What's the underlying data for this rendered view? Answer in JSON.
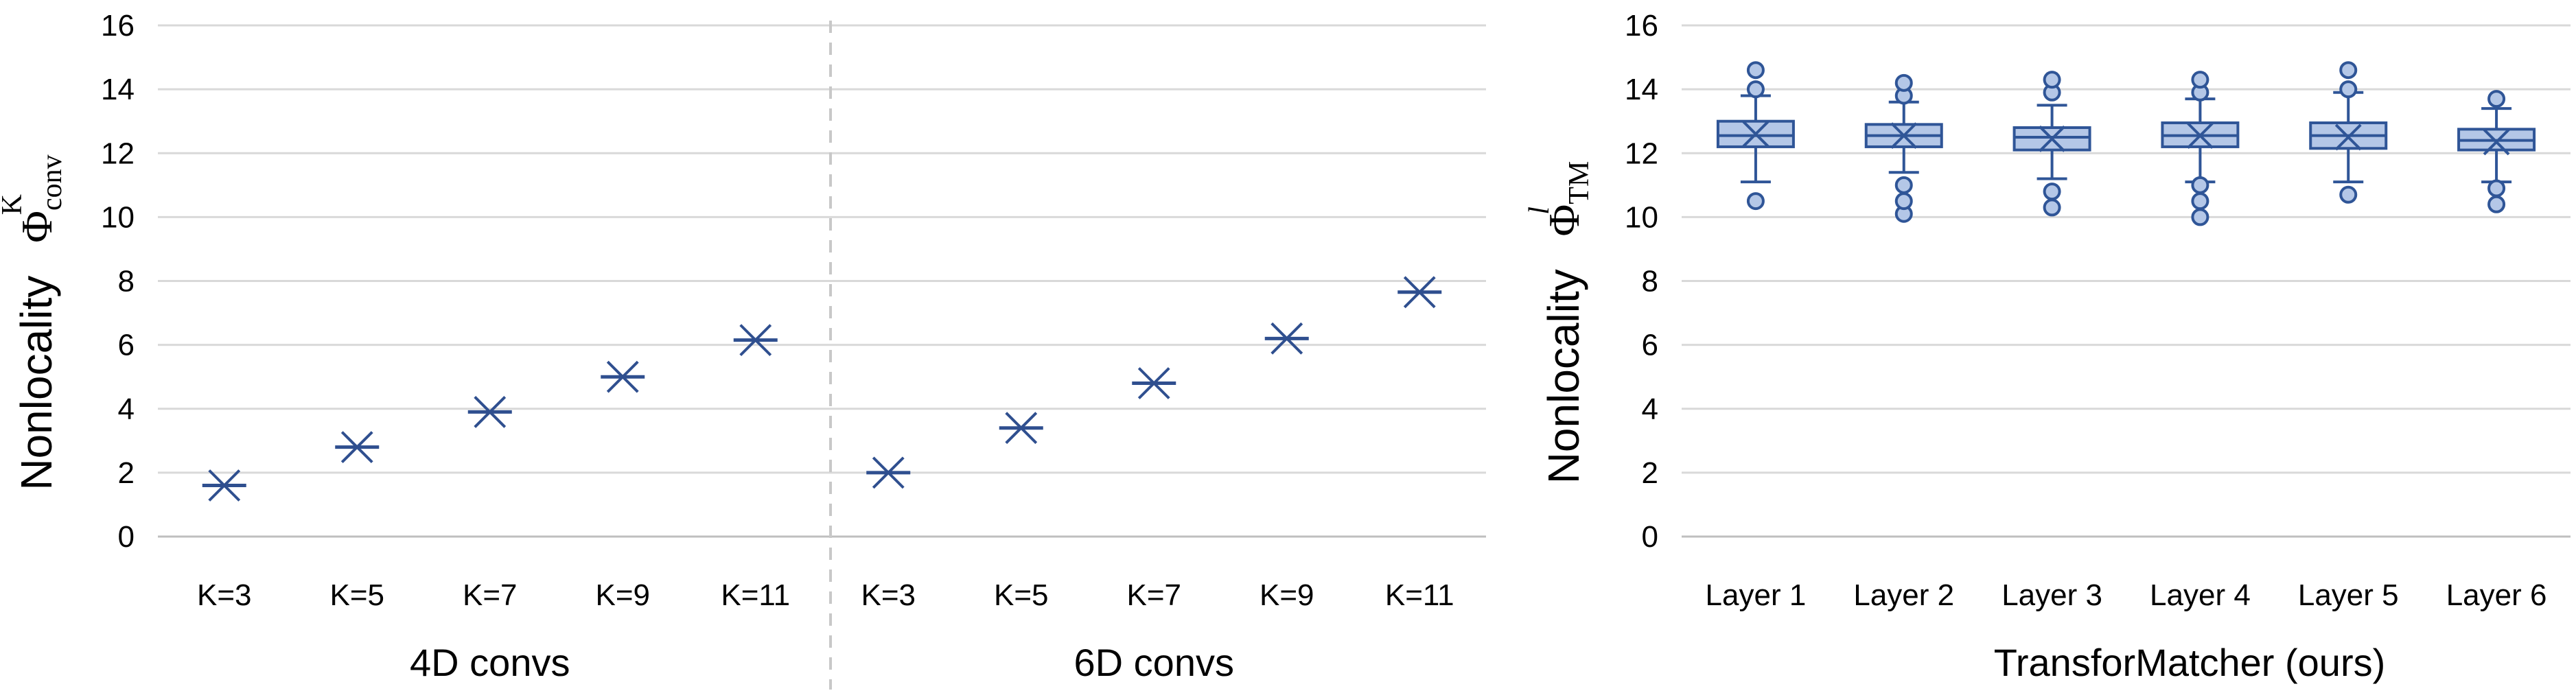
{
  "chart_data": [
    {
      "type": "scatter",
      "marker": "x-with-horizontal-bar",
      "ylabel": "Nonlocality",
      "ylabel_symbol": "Φ",
      "ylabel_superscript": "K",
      "ylabel_subscript": "conv",
      "ylim": [
        0,
        16
      ],
      "yticks": [
        "0",
        "2",
        "4",
        "6",
        "8",
        "10",
        "12",
        "14",
        "16"
      ],
      "grid": true,
      "color": "#2f4f8f",
      "groups": [
        {
          "name": "4D convs",
          "categories": [
            "K=3",
            "K=5",
            "K=7",
            "K=9",
            "K=11"
          ],
          "values": [
            1.6,
            2.8,
            3.9,
            5.0,
            6.15
          ]
        },
        {
          "name": "6D convs",
          "categories": [
            "K=3",
            "K=5",
            "K=7",
            "K=9",
            "K=11"
          ],
          "values": [
            2.0,
            3.4,
            4.8,
            6.2,
            7.65
          ]
        }
      ]
    },
    {
      "type": "box",
      "xlabel": "TransforMatcher (ours)",
      "ylabel": "Nonlocality",
      "ylabel_symbol": "Φ",
      "ylabel_superscript": "l",
      "ylabel_subscript": "TM",
      "ylim": [
        0,
        16
      ],
      "yticks": [
        "0",
        "2",
        "4",
        "6",
        "8",
        "10",
        "12",
        "14",
        "16"
      ],
      "grid": true,
      "box_fill": "#b4c7e7",
      "box_stroke": "#2f5597",
      "categories": [
        "Layer 1",
        "Layer 2",
        "Layer 3",
        "Layer 4",
        "Layer 5",
        "Layer 6"
      ],
      "boxes": [
        {
          "whisker_low": 11.1,
          "q1": 12.2,
          "median": 12.55,
          "q3": 13.0,
          "whisker_high": 13.8,
          "mean": 12.6,
          "outliers": [
            10.5,
            14.0,
            14.6
          ]
        },
        {
          "whisker_low": 11.4,
          "q1": 12.2,
          "median": 12.55,
          "q3": 12.9,
          "whisker_high": 13.6,
          "mean": 12.55,
          "outliers": [
            10.1,
            10.5,
            11.0,
            13.8,
            14.2
          ]
        },
        {
          "whisker_low": 11.2,
          "q1": 12.1,
          "median": 12.5,
          "q3": 12.8,
          "whisker_high": 13.5,
          "mean": 12.45,
          "outliers": [
            10.3,
            10.8,
            13.9,
            14.3
          ]
        },
        {
          "whisker_low": 11.1,
          "q1": 12.2,
          "median": 12.55,
          "q3": 12.95,
          "whisker_high": 13.7,
          "mean": 12.55,
          "outliers": [
            10.0,
            10.5,
            11.0,
            13.9,
            14.3
          ]
        },
        {
          "whisker_low": 11.1,
          "q1": 12.15,
          "median": 12.55,
          "q3": 12.95,
          "whisker_high": 13.9,
          "mean": 12.5,
          "outliers": [
            10.7,
            14.0,
            14.6
          ]
        },
        {
          "whisker_low": 11.1,
          "q1": 12.1,
          "median": 12.4,
          "q3": 12.75,
          "whisker_high": 13.4,
          "mean": 12.35,
          "outliers": [
            10.4,
            10.9,
            13.7
          ]
        }
      ]
    }
  ]
}
